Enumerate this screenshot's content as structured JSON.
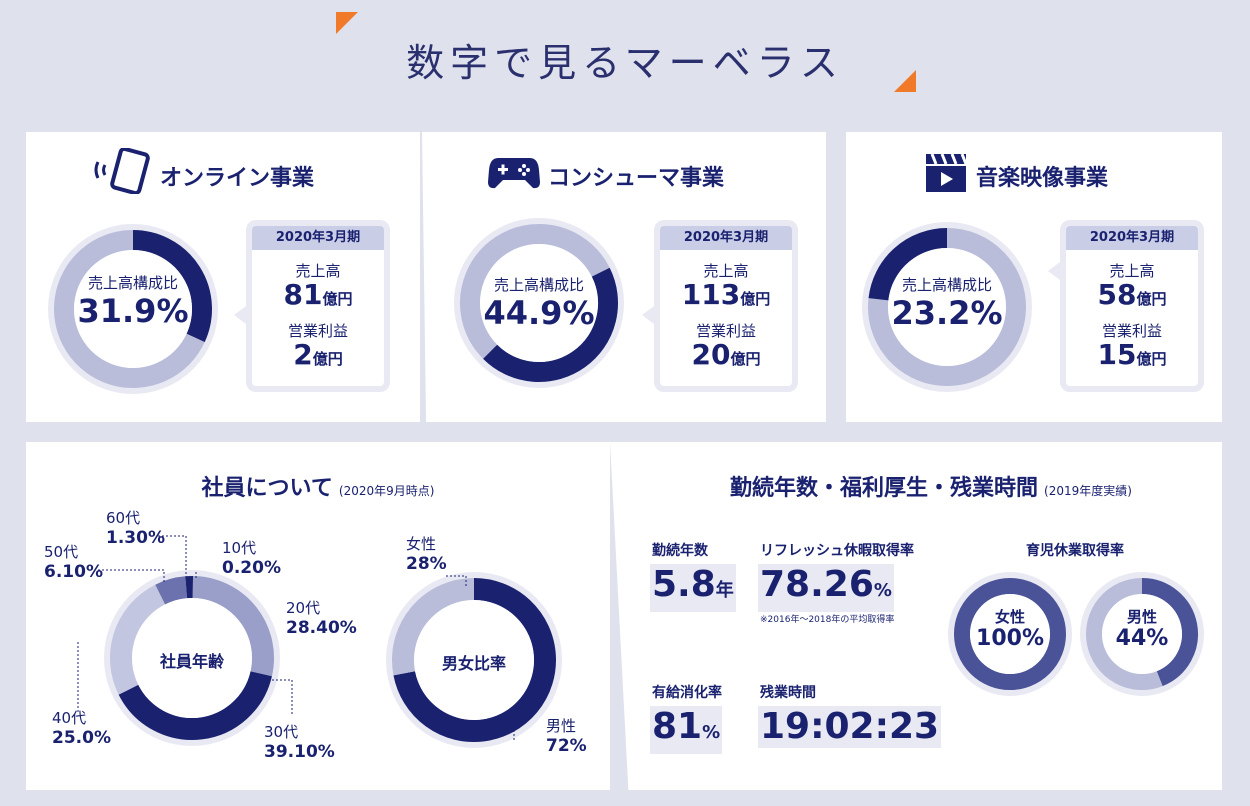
{
  "page_title": "数字で見るマーベラス",
  "segments": [
    {
      "name": "オンライン事業",
      "icon": "smartphone-icon",
      "center_label": "売上高構成比",
      "ratio": "31.9%",
      "ratio_value": 31.9,
      "period": "2020年3月期",
      "sales_label": "売上高",
      "sales_value": "81",
      "op_label": "営業利益",
      "op_value": "2",
      "unit": "億円"
    },
    {
      "name": "コンシューマ事業",
      "icon": "gamepad-icon",
      "center_label": "売上高構成比",
      "ratio": "44.9%",
      "ratio_value": 44.9,
      "period": "2020年3月期",
      "sales_label": "売上高",
      "sales_value": "113",
      "op_label": "営業利益",
      "op_value": "20",
      "unit": "億円"
    },
    {
      "name": "音楽映像事業",
      "icon": "clapperboard-icon",
      "center_label": "売上高構成比",
      "ratio": "23.2%",
      "ratio_value": 23.2,
      "period": "2020年3月期",
      "sales_label": "売上高",
      "sales_value": "58",
      "op_label": "営業利益",
      "op_value": "15",
      "unit": "億円"
    }
  ],
  "employees": {
    "title": "社員について",
    "title_note": "(2020年9月時点)",
    "age_center": "社員年齢",
    "ages": [
      {
        "label": "10代",
        "value": "0.20%",
        "pct": 0.2
      },
      {
        "label": "20代",
        "value": "28.40%",
        "pct": 28.4
      },
      {
        "label": "30代",
        "value": "39.10%",
        "pct": 39.1
      },
      {
        "label": "40代",
        "value": "25.0%",
        "pct": 25.0
      },
      {
        "label": "50代",
        "value": "6.10%",
        "pct": 6.1
      },
      {
        "label": "60代",
        "value": "1.30%",
        "pct": 1.3
      }
    ],
    "gender_center": "男女比率",
    "female_label": "女性",
    "female_value": "28%",
    "female_pct": 28,
    "male_label": "男性",
    "male_value": "72%",
    "male_pct": 72
  },
  "welfare": {
    "title": "勤続年数・福利厚生・残業時間",
    "title_note": "(2019年度実績)",
    "tenure_label": "勤続年数",
    "tenure_value": "5.8",
    "tenure_unit": "年",
    "refresh_label": "リフレッシュ休暇取得率",
    "refresh_value": "78.26",
    "refresh_unit": "%",
    "refresh_note": "※2016年～2018年の平均取得率",
    "paid_label": "有給消化率",
    "paid_value": "81",
    "paid_unit": "%",
    "overtime_label": "残業時間",
    "overtime_value": "19:02:23",
    "childcare_label": "育児休業取得率",
    "childcare_female_label": "女性",
    "childcare_female_value": "100%",
    "childcare_female_pct": 100,
    "childcare_male_label": "男性",
    "childcare_male_value": "44%",
    "childcare_male_pct": 44
  },
  "colors": {
    "dark": "#1a2270",
    "mid": "#7b82b8",
    "light": "#b9bdda",
    "ring": "#e8e9f3",
    "accent": "#f07a2a"
  }
}
